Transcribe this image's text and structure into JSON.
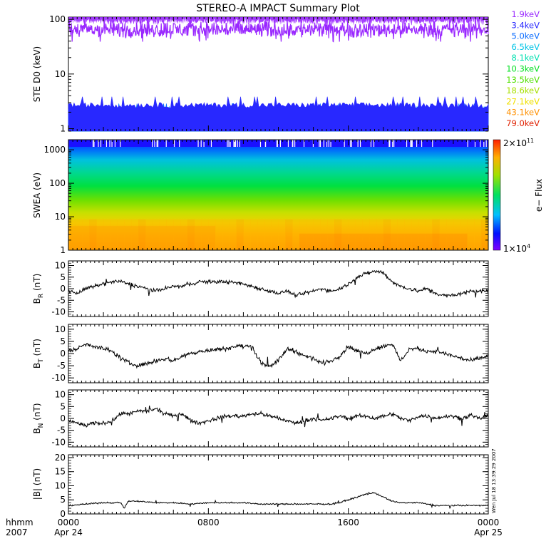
{
  "title": "STEREO-A IMPACT Summary Plot",
  "stamp": "Wen Jul 18 13:39:29 2007",
  "time_axis": {
    "label_line1": "hhmm",
    "label_line2": "2007",
    "ticks": [
      {
        "hour": 0,
        "label": "0000",
        "date": "Apr 24"
      },
      {
        "hour": 8,
        "label": "0800",
        "date": ""
      },
      {
        "hour": 16,
        "label": "1600",
        "date": ""
      },
      {
        "hour": 24,
        "label": "0000",
        "date": "Apr 25"
      }
    ]
  },
  "chart_data": [
    {
      "type": "line",
      "panel": "ste",
      "ylabel": "STE D0 (keV)",
      "scale": "log",
      "ylim": [
        0.9,
        110
      ],
      "yticks": [
        {
          "v": 1,
          "label": "1"
        },
        {
          "v": 10,
          "label": "10"
        },
        {
          "v": 100,
          "label": "100"
        }
      ],
      "xlim_hours": [
        0,
        24
      ],
      "series": [
        {
          "name": "1.9keV",
          "color": "#9a28ff",
          "base_level": 65
        },
        {
          "name": "3.4keV",
          "color": "#2828ff",
          "base_level": 2.4
        },
        {
          "name": "5.0keV",
          "color": "#0a6cff",
          "base_level": 1.8
        },
        {
          "name": "6.5keV",
          "color": "#00c4e6",
          "base_level": 1.6
        },
        {
          "name": "8.1keV",
          "color": "#00e0b0",
          "base_level": 1.5
        },
        {
          "name": "10.3keV",
          "color": "#00e020",
          "base_level": 1.4
        },
        {
          "name": "13.5keV",
          "color": "#50e000",
          "base_level": 1.3
        },
        {
          "name": "18.6keV",
          "color": "#a8e000",
          "base_level": 1.2
        },
        {
          "name": "27.1keV",
          "color": "#f0e000",
          "base_level": 1.1
        },
        {
          "name": "43.1keV",
          "color": "#ff9000",
          "base_level": 1.05
        },
        {
          "name": "79.0keV",
          "color": "#e02000",
          "base_level": 1.0
        }
      ]
    },
    {
      "type": "heatmap",
      "panel": "swea",
      "ylabel": "SWEA (eV)",
      "scale": "log",
      "ylim": [
        1,
        2000
      ],
      "yticks": [
        {
          "v": 1,
          "label": "1"
        },
        {
          "v": 10,
          "label": "10"
        },
        {
          "v": 100,
          "label": "100"
        },
        {
          "v": 1000,
          "label": "1000"
        }
      ],
      "xlim_hours": [
        0,
        24
      ],
      "colorbar": {
        "label": "e− Flux",
        "min_label": "1×10",
        "min_exp": "4",
        "max_label": "2×10",
        "max_exp": "11",
        "min": 10000,
        "max": 200000000000
      }
    },
    {
      "type": "line",
      "panel": "br",
      "ylabel": "B",
      "ylabel_sub": "R",
      "ylabel_unit": " (nT)",
      "ylim": [
        -12,
        12
      ],
      "yticks": [
        {
          "v": 10,
          "label": "10"
        },
        {
          "v": 5,
          "label": "5"
        },
        {
          "v": 0,
          "label": "0"
        },
        {
          "v": -5,
          "label": "-5"
        },
        {
          "v": -10,
          "label": "-10"
        }
      ],
      "xlim_hours": [
        0,
        24
      ],
      "keypoints": [
        [
          0,
          -1
        ],
        [
          0.5,
          -2
        ],
        [
          1,
          0
        ],
        [
          1.5,
          1
        ],
        [
          2,
          2
        ],
        [
          2.5,
          3
        ],
        [
          3,
          3
        ],
        [
          3.5,
          2
        ],
        [
          4,
          1
        ],
        [
          4.5,
          0
        ],
        [
          5,
          -1
        ],
        [
          5.5,
          0
        ],
        [
          6,
          1
        ],
        [
          6.5,
          1
        ],
        [
          7,
          2
        ],
        [
          7.5,
          3
        ],
        [
          8,
          3
        ],
        [
          8.5,
          3
        ],
        [
          9,
          3
        ],
        [
          9.5,
          2.5
        ],
        [
          10,
          2
        ],
        [
          10.5,
          1
        ],
        [
          11,
          0
        ],
        [
          11.5,
          -1
        ],
        [
          12,
          -2
        ],
        [
          12.5,
          -1
        ],
        [
          13,
          -3
        ],
        [
          13.5,
          -2
        ],
        [
          14,
          -1
        ],
        [
          14.5,
          0
        ],
        [
          15,
          -1
        ],
        [
          15.5,
          0
        ],
        [
          16,
          2
        ],
        [
          16.5,
          5
        ],
        [
          17,
          6.5
        ],
        [
          17.5,
          7.5
        ],
        [
          18,
          7
        ],
        [
          18.5,
          3
        ],
        [
          19,
          1
        ],
        [
          19.5,
          0
        ],
        [
          20,
          -1
        ],
        [
          20.5,
          0
        ],
        [
          21,
          -2
        ],
        [
          21.5,
          -3
        ],
        [
          22,
          -3
        ],
        [
          22.5,
          -2
        ],
        [
          23,
          -1
        ],
        [
          23.5,
          -1
        ],
        [
          24,
          -1
        ]
      ]
    },
    {
      "type": "line",
      "panel": "bt",
      "ylabel": "B",
      "ylabel_sub": "T",
      "ylabel_unit": " (nT)",
      "ylim": [
        -12,
        12
      ],
      "yticks": [
        {
          "v": 10,
          "label": "10"
        },
        {
          "v": 5,
          "label": "5"
        },
        {
          "v": 0,
          "label": "0"
        },
        {
          "v": -5,
          "label": "-5"
        },
        {
          "v": -10,
          "label": "-10"
        }
      ],
      "xlim_hours": [
        0,
        24
      ],
      "keypoints": [
        [
          0,
          1
        ],
        [
          0.5,
          2
        ],
        [
          1,
          4
        ],
        [
          1.5,
          3
        ],
        [
          2,
          2
        ],
        [
          2.5,
          1
        ],
        [
          3,
          -2
        ],
        [
          3.5,
          -4
        ],
        [
          4,
          -5
        ],
        [
          4.5,
          -4
        ],
        [
          5,
          -3
        ],
        [
          5.5,
          -2
        ],
        [
          6,
          -3
        ],
        [
          6.5,
          -1
        ],
        [
          7,
          0
        ],
        [
          7.5,
          1
        ],
        [
          8,
          1
        ],
        [
          8.5,
          2
        ],
        [
          9,
          2
        ],
        [
          9.5,
          3
        ],
        [
          10,
          3
        ],
        [
          10.5,
          3
        ],
        [
          11,
          -4
        ],
        [
          11.5,
          -5
        ],
        [
          12,
          -3
        ],
        [
          12.5,
          2
        ],
        [
          13,
          1
        ],
        [
          13.5,
          -1
        ],
        [
          14,
          -2
        ],
        [
          14.5,
          -4
        ],
        [
          15,
          -3
        ],
        [
          15.5,
          -1
        ],
        [
          16,
          3
        ],
        [
          16.5,
          1
        ],
        [
          17,
          0
        ],
        [
          17.5,
          2
        ],
        [
          18,
          3
        ],
        [
          18.5,
          4
        ],
        [
          19,
          -3
        ],
        [
          19.5,
          2
        ],
        [
          20,
          2
        ],
        [
          20.5,
          1
        ],
        [
          21,
          1
        ],
        [
          21.5,
          0
        ],
        [
          22,
          -1
        ],
        [
          22.5,
          -2
        ],
        [
          23,
          -3
        ],
        [
          23.5,
          -2
        ],
        [
          24,
          -1
        ]
      ]
    },
    {
      "type": "line",
      "panel": "bn",
      "ylabel": "B",
      "ylabel_sub": "N",
      "ylabel_unit": " (nT)",
      "ylim": [
        -12,
        12
      ],
      "yticks": [
        {
          "v": 10,
          "label": "10"
        },
        {
          "v": 5,
          "label": "5"
        },
        {
          "v": 0,
          "label": "0"
        },
        {
          "v": -5,
          "label": "-5"
        },
        {
          "v": -10,
          "label": "-10"
        }
      ],
      "xlim_hours": [
        0,
        24
      ],
      "keypoints": [
        [
          0,
          -1
        ],
        [
          0.5,
          -2
        ],
        [
          1,
          -3
        ],
        [
          1.5,
          -2
        ],
        [
          2,
          -2
        ],
        [
          2.5,
          -1
        ],
        [
          3,
          2
        ],
        [
          3.5,
          2
        ],
        [
          4,
          3
        ],
        [
          4.5,
          3
        ],
        [
          5,
          4
        ],
        [
          5.5,
          2
        ],
        [
          6,
          1
        ],
        [
          6.5,
          2
        ],
        [
          7,
          -1
        ],
        [
          7.5,
          -2
        ],
        [
          8,
          -1
        ],
        [
          8.5,
          0
        ],
        [
          9,
          1
        ],
        [
          9.5,
          1
        ],
        [
          10,
          1
        ],
        [
          10.5,
          2
        ],
        [
          11,
          2
        ],
        [
          11.5,
          1
        ],
        [
          12,
          0
        ],
        [
          12.5,
          -1
        ],
        [
          13,
          -2
        ],
        [
          13.5,
          -1
        ],
        [
          14,
          0
        ],
        [
          14.5,
          -1
        ],
        [
          15,
          0
        ],
        [
          15.5,
          1
        ],
        [
          16,
          0
        ],
        [
          16.5,
          1
        ],
        [
          17,
          1
        ],
        [
          17.5,
          0
        ],
        [
          18,
          1
        ],
        [
          18.5,
          2
        ],
        [
          19,
          0
        ],
        [
          19.5,
          -1
        ],
        [
          20,
          1
        ],
        [
          20.5,
          1
        ],
        [
          21,
          0
        ],
        [
          21.5,
          1
        ],
        [
          22,
          1
        ],
        [
          22.5,
          0
        ],
        [
          23,
          1
        ],
        [
          23.5,
          0
        ],
        [
          24,
          1
        ]
      ]
    },
    {
      "type": "line",
      "panel": "bmag",
      "ylabel": "|B| (nT)",
      "ylim": [
        0,
        21
      ],
      "yticks": [
        {
          "v": 20,
          "label": "20"
        },
        {
          "v": 15,
          "label": "15"
        },
        {
          "v": 10,
          "label": "10"
        },
        {
          "v": 5,
          "label": "5"
        },
        {
          "v": 0,
          "label": "0"
        }
      ],
      "xlim_hours": [
        0,
        24
      ],
      "keypoints": [
        [
          0,
          3
        ],
        [
          1,
          3.5
        ],
        [
          2,
          4
        ],
        [
          3,
          4
        ],
        [
          3.2,
          2
        ],
        [
          3.4,
          4.5
        ],
        [
          4,
          4.5
        ],
        [
          5,
          4
        ],
        [
          6,
          4
        ],
        [
          7,
          3.5
        ],
        [
          8,
          4
        ],
        [
          9,
          4
        ],
        [
          10,
          4
        ],
        [
          11,
          3.5
        ],
        [
          12,
          3.5
        ],
        [
          13,
          3.5
        ],
        [
          14,
          3.5
        ],
        [
          15,
          3.5
        ],
        [
          15.5,
          4
        ],
        [
          16,
          5
        ],
        [
          16.5,
          6
        ],
        [
          17,
          7
        ],
        [
          17.5,
          7.5
        ],
        [
          18,
          6
        ],
        [
          18.5,
          4.5
        ],
        [
          19,
          4
        ],
        [
          20,
          4
        ],
        [
          20.5,
          3.5
        ],
        [
          21,
          3
        ],
        [
          22,
          3
        ],
        [
          23,
          3
        ],
        [
          24,
          3
        ]
      ]
    }
  ]
}
